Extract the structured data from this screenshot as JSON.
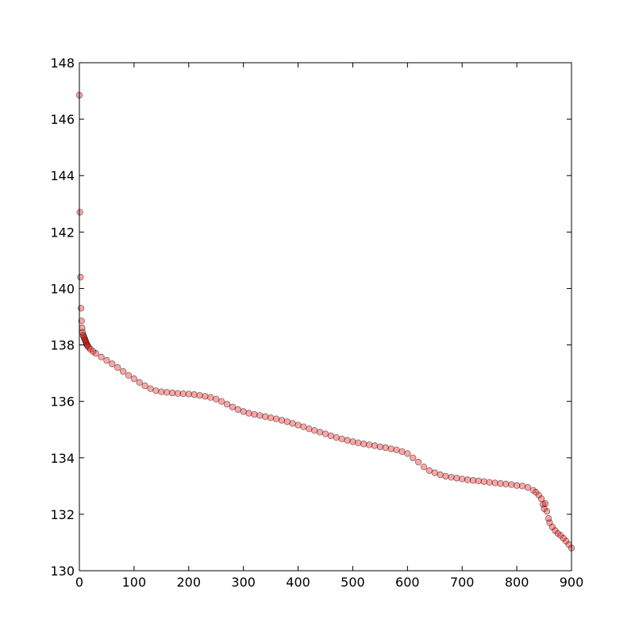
{
  "chart_data": {
    "type": "scatter",
    "title": "",
    "xlabel": "",
    "ylabel": "",
    "xlim": [
      0,
      900
    ],
    "ylim": [
      130,
      148
    ],
    "xticks": [
      0,
      100,
      200,
      300,
      400,
      500,
      600,
      700,
      800,
      900
    ],
    "yticks": [
      130,
      132,
      134,
      136,
      138,
      140,
      142,
      144,
      146,
      148
    ],
    "grid": false,
    "legend": "none",
    "colors": {
      "marker_fill": "#ff0000",
      "marker_edge": "#000000",
      "axis": "#000000",
      "background": "#ffffff"
    },
    "series": [
      {
        "x": [
          0,
          1,
          2,
          3,
          4,
          5,
          6,
          7,
          8,
          9,
          10,
          11,
          12,
          13,
          14,
          15,
          17,
          20,
          25,
          30,
          40,
          50,
          60,
          70,
          80,
          90,
          100,
          110,
          120,
          130,
          140,
          150,
          160,
          170,
          180,
          190,
          200,
          210,
          220,
          230,
          240,
          250,
          260,
          270,
          280,
          290,
          300,
          310,
          320,
          330,
          340,
          350,
          360,
          370,
          380,
          390,
          400,
          410,
          420,
          430,
          440,
          450,
          460,
          470,
          480,
          490,
          500,
          510,
          520,
          530,
          540,
          550,
          560,
          570,
          580,
          590,
          600,
          610,
          620,
          630,
          640,
          650,
          660,
          670,
          680,
          690,
          700,
          710,
          720,
          730,
          740,
          750,
          760,
          770,
          780,
          790,
          800,
          810,
          820,
          830,
          835,
          840,
          845,
          848,
          850,
          852,
          855,
          858,
          860,
          865,
          870,
          875,
          880,
          885,
          890,
          895,
          900
        ],
        "y": [
          146.85,
          142.7,
          140.4,
          139.3,
          138.85,
          138.6,
          138.45,
          138.35,
          138.3,
          138.25,
          138.2,
          138.15,
          138.1,
          138.05,
          138.0,
          137.97,
          137.92,
          137.85,
          137.77,
          137.7,
          137.57,
          137.45,
          137.33,
          137.2,
          137.06,
          136.92,
          136.8,
          136.67,
          136.55,
          136.45,
          136.38,
          136.34,
          136.32,
          136.3,
          136.28,
          136.27,
          136.26,
          136.24,
          136.21,
          136.18,
          136.14,
          136.08,
          136.0,
          135.9,
          135.8,
          135.71,
          135.64,
          135.58,
          135.54,
          135.5,
          135.46,
          135.42,
          135.38,
          135.33,
          135.28,
          135.22,
          135.16,
          135.1,
          135.03,
          134.97,
          134.91,
          134.85,
          134.78,
          134.72,
          134.67,
          134.62,
          134.57,
          134.53,
          134.49,
          134.46,
          134.43,
          134.39,
          134.36,
          134.32,
          134.28,
          134.22,
          134.15,
          134.0,
          133.85,
          133.68,
          133.55,
          133.47,
          133.4,
          133.35,
          133.31,
          133.28,
          133.25,
          133.22,
          133.2,
          133.18,
          133.16,
          133.13,
          133.11,
          133.09,
          133.07,
          133.05,
          133.02,
          133.0,
          132.95,
          132.85,
          132.78,
          132.68,
          132.55,
          132.35,
          132.2,
          132.38,
          132.1,
          131.85,
          131.7,
          131.55,
          131.42,
          131.32,
          131.25,
          131.15,
          131.05,
          130.93,
          130.8
        ]
      }
    ]
  }
}
